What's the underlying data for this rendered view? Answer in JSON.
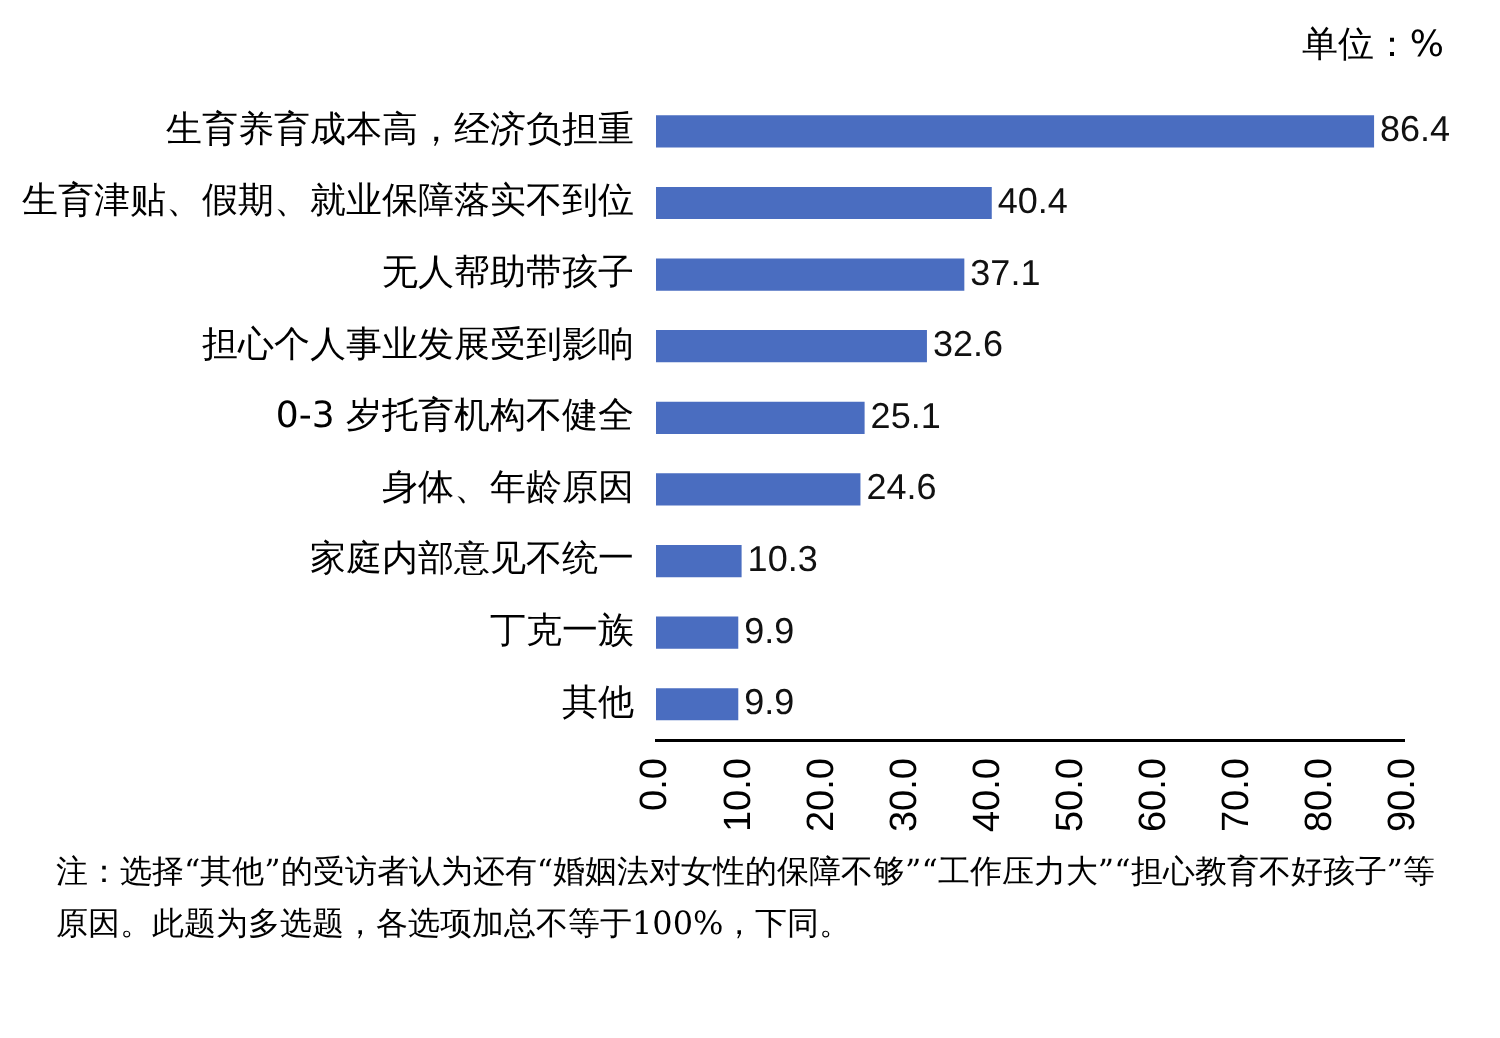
{
  "chart_data": {
    "type": "bar",
    "orientation": "horizontal",
    "categories": [
      "生育养育成本高，经济负担重",
      "生育津贴、假期、就业保障落实不到位",
      "无人帮助带孩子",
      "担心个人事业发展受到影响",
      "0-3 岁托育机构不健全",
      "身体、年龄原因",
      "家庭内部意见不统一",
      "丁克一族",
      "其他"
    ],
    "values": [
      86.4,
      40.4,
      37.1,
      32.6,
      25.1,
      24.6,
      10.3,
      9.9,
      9.9
    ],
    "color": "#4a6dc0",
    "xlim": [
      0,
      90
    ],
    "xticks": [
      {
        "value": 0,
        "label": "0.0"
      },
      {
        "value": 10,
        "label": "10.0"
      },
      {
        "value": 20,
        "label": "20.0"
      },
      {
        "value": 30,
        "label": "30.0"
      },
      {
        "value": 40,
        "label": "40.0"
      },
      {
        "value": 50,
        "label": "50.0"
      },
      {
        "value": 60,
        "label": "60.0"
      },
      {
        "value": 70,
        "label": "70.0"
      },
      {
        "value": 80,
        "label": "80.0"
      },
      {
        "value": 90,
        "label": "90.0"
      }
    ],
    "data_labels": true,
    "grid": false,
    "legend": false,
    "annotations": [
      "单位：%",
      "注：选择“其他”的受访者认为还有“婚姻法对女性的保障不够”“工作压力大”“担心教育不好孩子”等原因。此题为多选题，各选项加总不等于100%，下同。"
    ]
  }
}
